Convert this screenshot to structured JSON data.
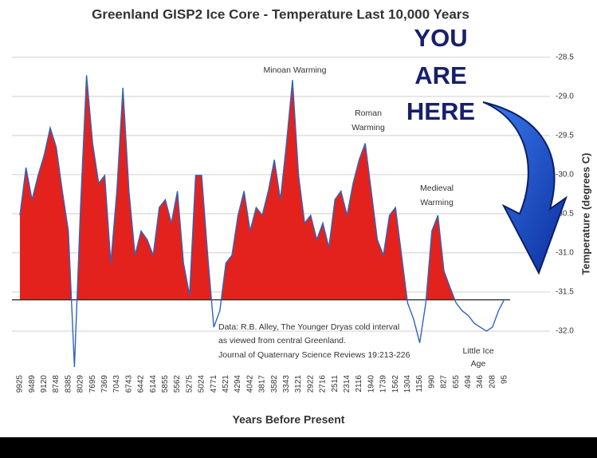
{
  "chart_data": {
    "type": "area",
    "title": "Greenland GISP2 Ice Core - Temperature Last 10,000 Years",
    "x_label": "Years Before Present",
    "y_label": "Temperature (degrees C)",
    "annotations": [
      "YOU",
      "ARE",
      "HERE",
      "Minoan Warming",
      "Roman",
      "Warming",
      "Medieval",
      "Warming",
      "Little Ice",
      "Age",
      "Data: R.B. Alley,  The Younger Dryas cold interval",
      "as viewed from central Greenland.",
      "Journal of Quaternary  Science Reviews 19:213-226"
    ],
    "categories": [
      "9925",
      null,
      "9489",
      null,
      "9120",
      null,
      "8748",
      null,
      "8385",
      null,
      "8029",
      null,
      "7695",
      null,
      "7369",
      null,
      "7043",
      null,
      "6743",
      null,
      "6442",
      null,
      "6144",
      null,
      "5855",
      null,
      "5562",
      null,
      "5275",
      null,
      "5024",
      null,
      "4771",
      null,
      "4521",
      null,
      "4294",
      null,
      "4042",
      null,
      "3817",
      null,
      "3582",
      null,
      "3343",
      null,
      "3121",
      null,
      "2922",
      null,
      "2716",
      null,
      "2511",
      null,
      "2314",
      null,
      "2116",
      null,
      "1940",
      null,
      "1739",
      null,
      "1562",
      null,
      "1304",
      null,
      "1156",
      null,
      "990",
      null,
      "827",
      null,
      "655",
      null,
      "494",
      null,
      "346",
      null,
      "208",
      null,
      "95"
    ],
    "series": [
      {
        "name": "Temperature",
        "color": "#2f63c0",
        "fill": "#e4221d",
        "values": [
          -30.52,
          -29.91,
          -30.32,
          -30.01,
          -29.75,
          -29.4,
          -29.65,
          -30.21,
          -30.72,
          -32.46,
          -30.42,
          -28.73,
          -29.6,
          -30.11,
          -30.01,
          -31.13,
          -30.21,
          -28.89,
          -30.21,
          -31.03,
          -30.72,
          -30.83,
          -31.03,
          -30.42,
          -30.32,
          -30.62,
          -30.21,
          -31.13,
          -31.54,
          -30.01,
          -30.01,
          -31.03,
          -31.95,
          -31.74,
          -31.13,
          -31.03,
          -30.52,
          -30.21,
          -30.72,
          -30.42,
          -30.52,
          -30.21,
          -29.81,
          -30.32,
          -29.6,
          -28.79,
          -30.01,
          -30.62,
          -30.52,
          -30.83,
          -30.62,
          -30.93,
          -30.32,
          -30.21,
          -30.52,
          -30.11,
          -29.81,
          -29.6,
          -30.21,
          -30.83,
          -31.03,
          -30.52,
          -30.42,
          -31.03,
          -31.64,
          -31.85,
          -32.15,
          -31.64,
          -30.72,
          -30.52,
          -31.23,
          -31.44,
          -31.64,
          -31.74,
          -31.8,
          -31.9,
          -31.95,
          -32.0,
          -31.95,
          -31.74,
          -31.59
        ]
      }
    ],
    "baseline": -31.6,
    "ylim": [
      -32.5,
      -28.4
    ],
    "yticks": [
      {
        "value": -28.5,
        "label": "-28.5"
      },
      {
        "value": -29,
        "label": "-29.0"
      },
      -29.5,
      {
        "value": -30,
        "label": "-30.0"
      },
      -30.5,
      {
        "value": -31,
        "label": "-31.0"
      },
      -31.5,
      {
        "value": -32,
        "label": "-32.0"
      }
    ],
    "grid": true
  }
}
